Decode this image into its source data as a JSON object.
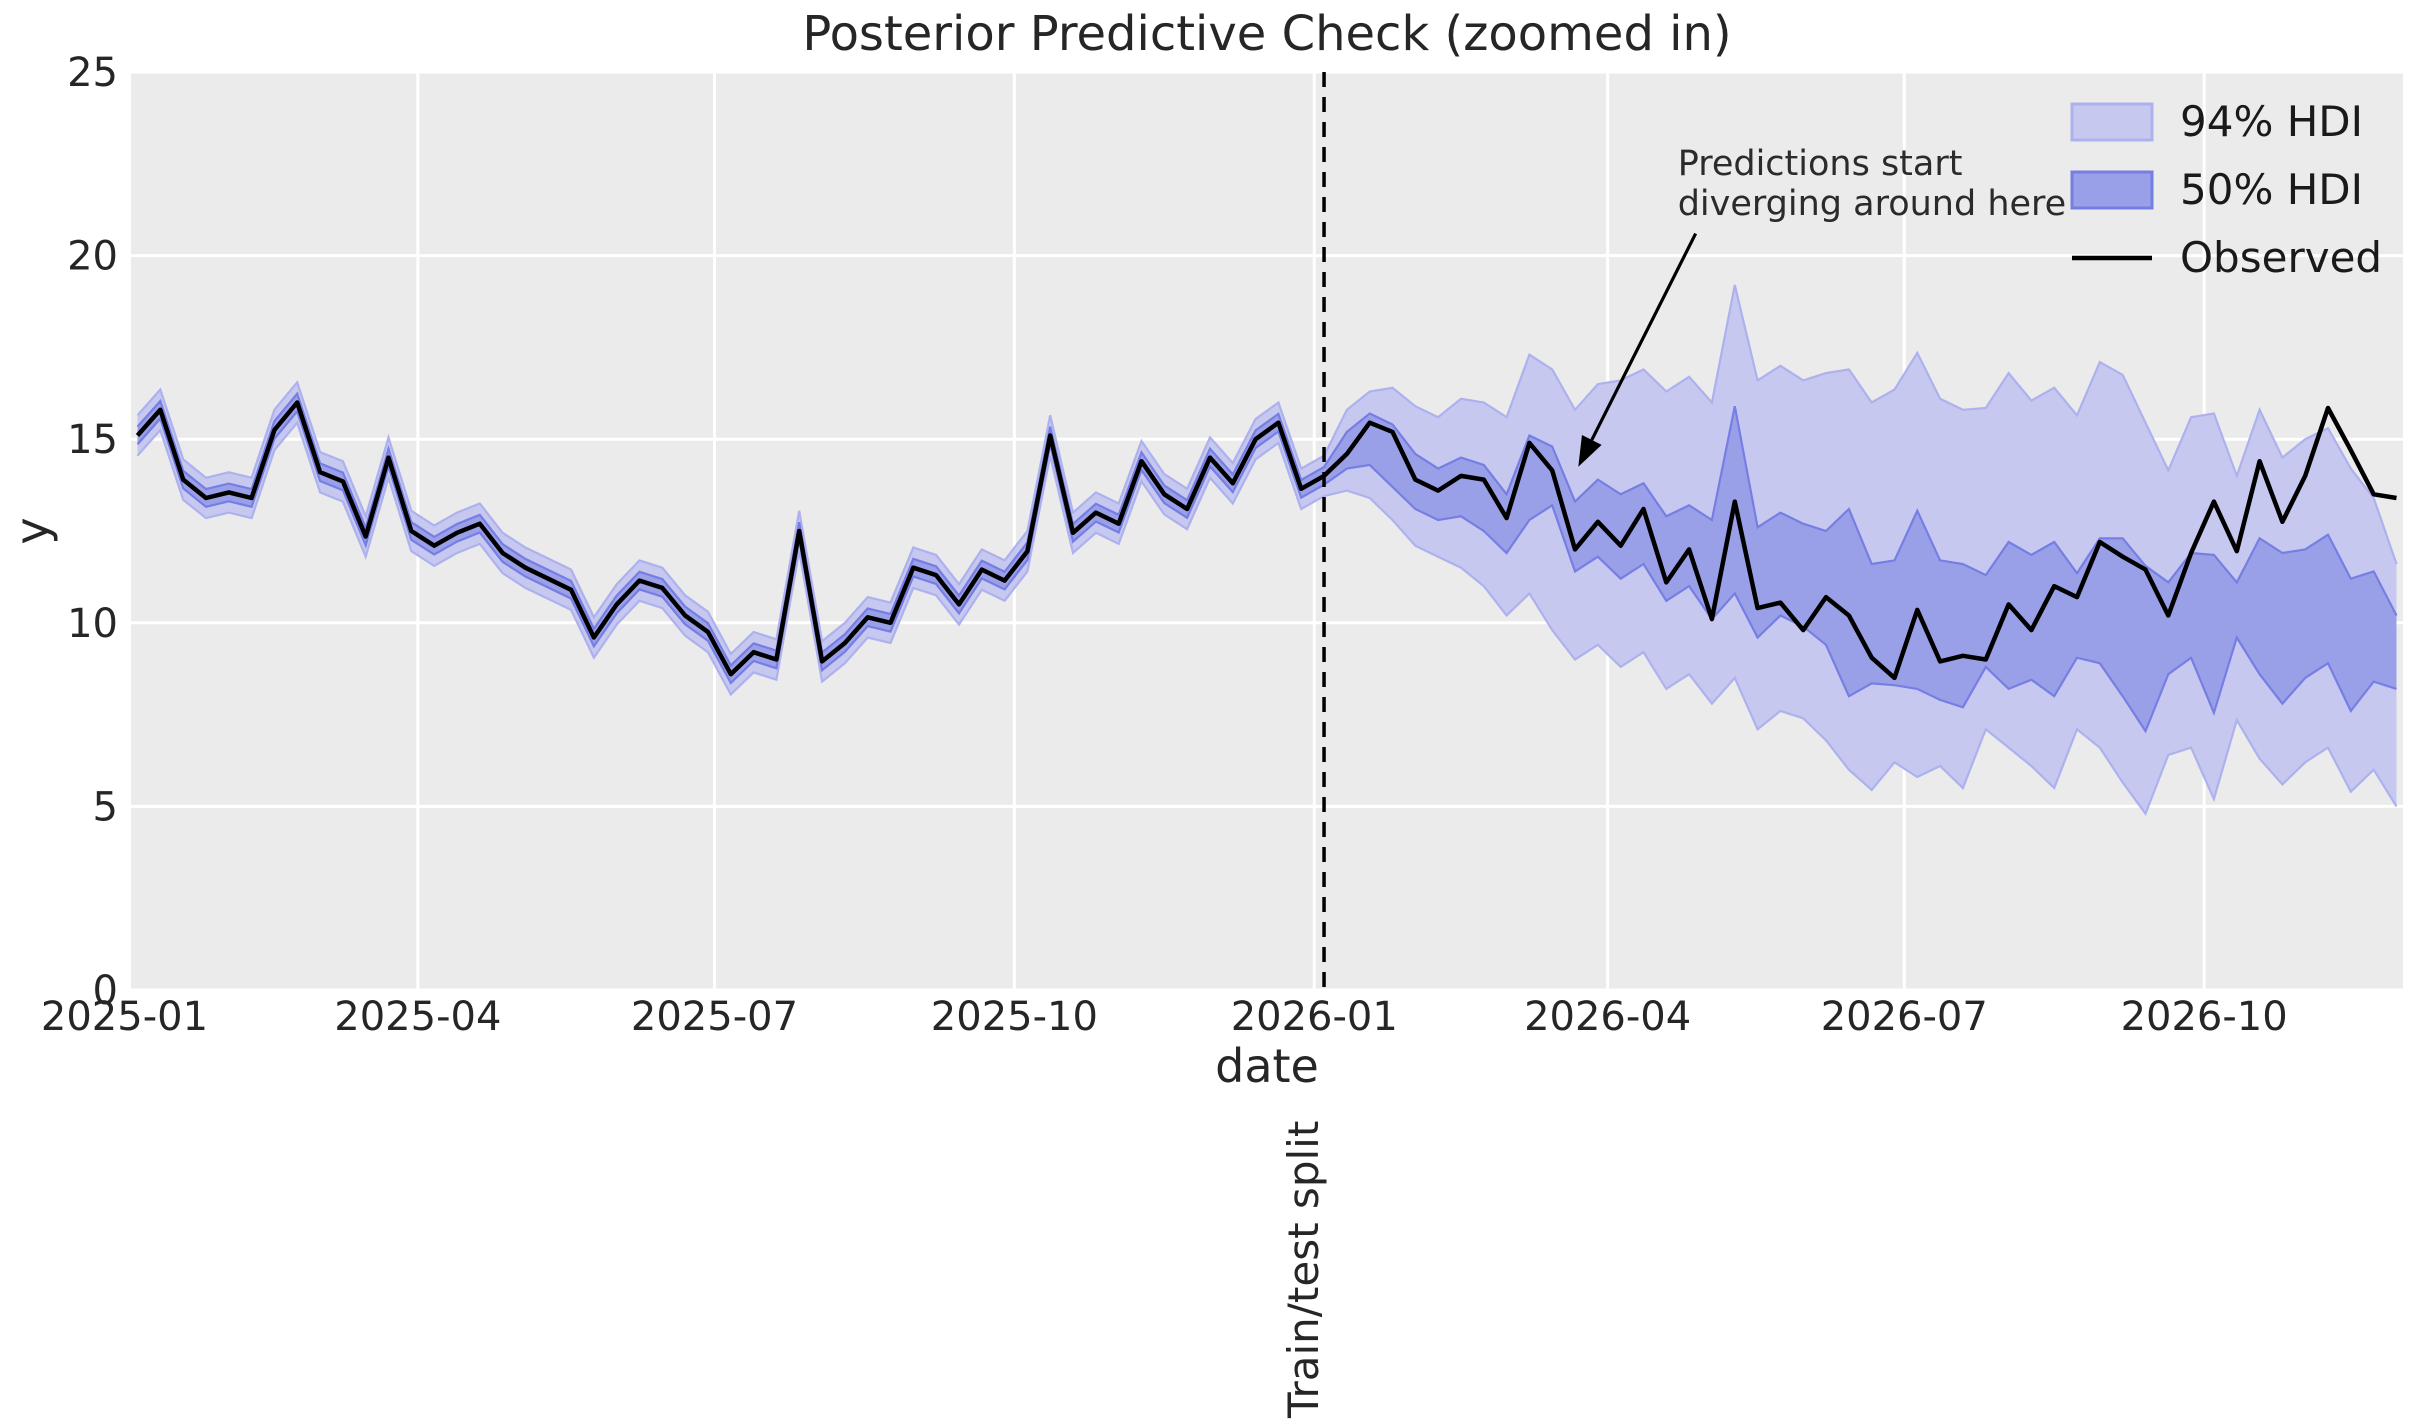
{
  "chart_data": {
    "type": "line",
    "title": "Posterior Predictive Check (zoomed in)",
    "xlabel": "date",
    "ylabel": "y",
    "ylim": [
      0,
      25
    ],
    "yticks": [
      0,
      5,
      10,
      15,
      20,
      25
    ],
    "xticks": [
      {
        "day": 0,
        "label": "2025-01"
      },
      {
        "day": 90,
        "label": "2025-04"
      },
      {
        "day": 181,
        "label": "2025-07"
      },
      {
        "day": 273,
        "label": "2025-10"
      },
      {
        "day": 365,
        "label": "2026-01"
      },
      {
        "day": 455,
        "label": "2026-04"
      },
      {
        "day": 546,
        "label": "2026-07"
      },
      {
        "day": 638,
        "label": "2026-10"
      }
    ],
    "x_domain_days": [
      2,
      699
    ],
    "grid": true,
    "legend_position": "upper right",
    "legend": [
      "94% HDI",
      "50% HDI",
      "Observed"
    ],
    "split_line": {
      "day": 368,
      "label": "Train/test split",
      "style": "dashed"
    },
    "annotation": {
      "lines": [
        "Predictions start",
        "diverging around here"
      ],
      "text_day": 476.5,
      "text_value": 22.2,
      "arrow_start_day": 482,
      "arrow_start_value": 20.6,
      "target_day": 446,
      "target_value": 14.25
    },
    "series_start_date": "2025-01-05",
    "series_freq_days": 7,
    "test_start_index": 53,
    "observed": [
      15.1,
      15.8,
      13.9,
      13.4,
      13.55,
      13.4,
      15.25,
      16.0,
      14.1,
      13.85,
      12.35,
      14.5,
      12.5,
      12.1,
      12.45,
      12.7,
      11.9,
      11.5,
      11.2,
      10.9,
      9.6,
      10.5,
      11.15,
      10.95,
      10.2,
      9.75,
      8.6,
      9.2,
      9.0,
      12.5,
      8.95,
      9.45,
      10.15,
      10.0,
      11.5,
      11.3,
      10.5,
      11.45,
      11.15,
      11.95,
      15.1,
      12.45,
      13.0,
      12.7,
      14.4,
      13.5,
      13.1,
      14.5,
      13.8,
      15.0,
      15.45,
      13.65,
      14.0,
      14.6,
      15.45,
      15.2,
      13.9,
      13.6,
      14.0,
      13.9,
      12.85,
      14.9,
      14.15,
      12.0,
      12.75,
      12.1,
      13.1,
      11.1,
      12.0,
      10.1,
      13.3,
      10.4,
      10.55,
      9.8,
      10.7,
      10.2,
      9.05,
      8.5,
      10.35,
      8.95,
      9.1,
      9.0,
      10.5,
      9.8,
      11.0,
      10.7,
      12.2,
      11.8,
      11.45,
      10.2,
      11.9,
      13.3,
      11.95,
      14.4,
      12.75,
      14.0,
      15.85,
      14.7,
      13.5,
      13.4
    ],
    "in_sample_hdi94_halfwidth": 0.55,
    "in_sample_hdi50_halfwidth": 0.24,
    "forecast_hdi94_lower": [
      13.6,
      13.4,
      12.8,
      12.1,
      11.8,
      11.5,
      11.0,
      10.2,
      10.8,
      9.8,
      9.0,
      9.4,
      8.8,
      9.2,
      8.2,
      8.6,
      7.8,
      8.5,
      7.1,
      7.6,
      7.4,
      6.8,
      6.0,
      5.45,
      6.2,
      5.8,
      6.1,
      5.5,
      7.1,
      6.6,
      6.1,
      5.5,
      7.1,
      6.6,
      5.65,
      4.8,
      6.4,
      6.6,
      5.2,
      7.35,
      6.3,
      5.6,
      6.2,
      6.6,
      5.4,
      6.0,
      5.0
    ],
    "forecast_hdi94_upper": [
      15.8,
      16.3,
      16.4,
      15.9,
      15.6,
      16.1,
      16.0,
      15.6,
      17.3,
      16.9,
      15.8,
      16.5,
      16.6,
      16.9,
      16.3,
      16.7,
      16.0,
      19.2,
      16.6,
      17.0,
      16.6,
      16.8,
      16.9,
      16.0,
      16.35,
      17.35,
      16.1,
      15.8,
      15.85,
      16.8,
      16.05,
      16.4,
      15.65,
      17.1,
      16.75,
      15.45,
      14.15,
      15.6,
      15.7,
      14.0,
      15.8,
      14.5,
      15.0,
      15.3,
      14.2,
      13.4,
      11.6
    ],
    "forecast_hdi50_lower": [
      14.2,
      14.3,
      13.7,
      13.1,
      12.8,
      12.9,
      12.5,
      11.9,
      12.8,
      13.2,
      11.4,
      11.8,
      11.2,
      11.6,
      10.6,
      11.0,
      10.1,
      10.8,
      9.6,
      10.2,
      9.9,
      9.4,
      8.0,
      8.35,
      8.3,
      8.2,
      7.9,
      7.7,
      8.8,
      8.2,
      8.45,
      8.0,
      9.05,
      8.9,
      8.0,
      7.05,
      8.6,
      9.05,
      7.55,
      9.6,
      8.6,
      7.8,
      8.5,
      8.9,
      7.6,
      8.4,
      8.2
    ],
    "forecast_hdi50_upper": [
      15.2,
      15.7,
      15.4,
      14.6,
      14.2,
      14.5,
      14.3,
      13.5,
      15.1,
      14.8,
      13.3,
      13.9,
      13.5,
      13.8,
      12.9,
      13.2,
      12.8,
      15.9,
      12.6,
      13.0,
      12.7,
      12.5,
      13.1,
      11.6,
      11.7,
      13.05,
      11.7,
      11.6,
      11.3,
      12.2,
      11.85,
      12.2,
      11.35,
      12.3,
      12.3,
      11.55,
      11.1,
      11.9,
      11.85,
      11.1,
      12.3,
      11.9,
      12.0,
      12.4,
      11.2,
      11.4,
      10.2
    ],
    "colors": {
      "plot_background": "#ebebeb",
      "gridline": "#ffffff",
      "hdi94_fill": "#c6c8ef",
      "hdi94_edge": "#adb1ee",
      "hdi50_fill": "#9aa0e8",
      "hdi50_edge": "#767ee3",
      "observed_line": "#000000",
      "split_line": "#000000",
      "text": "#262626"
    }
  }
}
